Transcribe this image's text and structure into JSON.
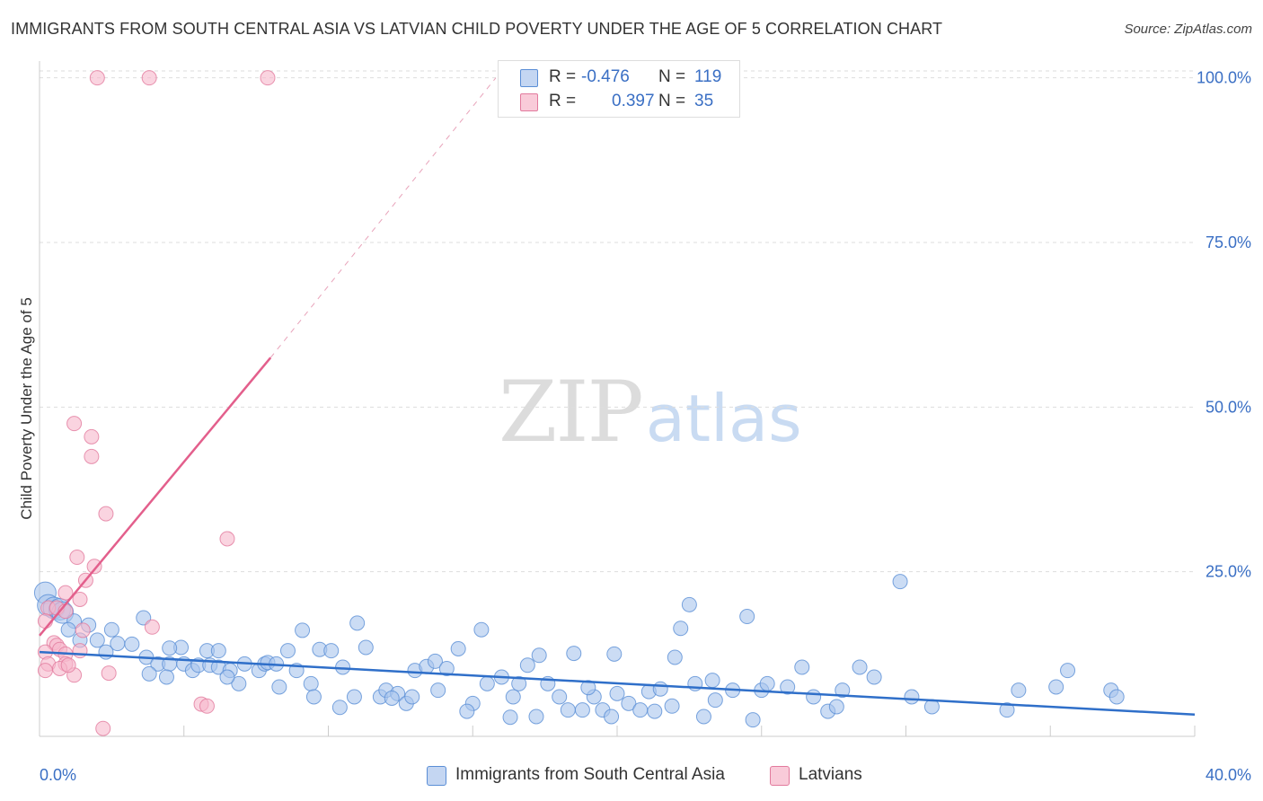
{
  "title": "IMMIGRANTS FROM SOUTH CENTRAL ASIA VS LATVIAN CHILD POVERTY UNDER THE AGE OF 5 CORRELATION CHART",
  "source": "Source: ZipAtlas.com",
  "watermark": {
    "zip": "ZIP",
    "atlas": "atlas"
  },
  "legend": {
    "series1": {
      "r_label": "R =",
      "r_value": "-0.476",
      "n_label": "N =",
      "n_value": "119",
      "name": "Immigrants from South Central Asia"
    },
    "series2": {
      "r_label": "R =",
      "r_value": "0.397",
      "n_label": "N =",
      "n_value": "35",
      "name": "Latvians"
    }
  },
  "colors": {
    "blue_fill": "#a9c4ec",
    "blue_stroke": "#5a8ed6",
    "blue_line": "#2f6fc9",
    "pink_fill": "#f6b8cb",
    "pink_stroke": "#e27a9d",
    "pink_line": "#e35f8c",
    "tick_text": "#3a6fc4",
    "grid": "#dddddd"
  },
  "chart_data": {
    "type": "scatter",
    "title": "IMMIGRANTS FROM SOUTH CENTRAL ASIA VS LATVIAN CHILD POVERTY UNDER THE AGE OF 5 CORRELATION CHART",
    "xlabel": "",
    "ylabel": "Child Poverty Under the Age of 5",
    "xlim": [
      0,
      40
    ],
    "ylim": [
      0,
      102
    ],
    "x_tick_labels": [
      {
        "value": 0,
        "label": "0.0%"
      },
      {
        "value": 40,
        "label": "40.0%"
      }
    ],
    "y_tick_labels": [
      {
        "value": 25,
        "label": "25.0%"
      },
      {
        "value": 50,
        "label": "50.0%"
      },
      {
        "value": 75,
        "label": "75.0%"
      },
      {
        "value": 100,
        "label": "100.0%"
      }
    ],
    "grid": true,
    "legend_position": "top-center",
    "series": [
      {
        "name": "Immigrants from South Central Asia",
        "color": "#a9c4ec",
        "trend": {
          "x0": 0,
          "y0": 12.8,
          "x1": 40,
          "y1": 3.3
        },
        "points": [
          [
            0.2,
            21.8
          ],
          [
            0.3,
            19.9
          ],
          [
            0.5,
            19.5
          ],
          [
            0.7,
            19.3
          ],
          [
            0.8,
            18.8
          ],
          [
            1.2,
            17.5
          ],
          [
            1.0,
            16.2
          ],
          [
            1.7,
            16.9
          ],
          [
            2.5,
            16.2
          ],
          [
            1.4,
            14.6
          ],
          [
            2.0,
            14.6
          ],
          [
            2.7,
            14.1
          ],
          [
            3.2,
            14.0
          ],
          [
            2.3,
            12.8
          ],
          [
            3.6,
            18.0
          ],
          [
            3.7,
            12.0
          ],
          [
            4.1,
            11.0
          ],
          [
            4.5,
            11.0
          ],
          [
            3.8,
            9.5
          ],
          [
            4.4,
            9.0
          ],
          [
            5.0,
            11.0
          ],
          [
            5.3,
            10.0
          ],
          [
            5.5,
            10.8
          ],
          [
            5.9,
            10.8
          ],
          [
            4.9,
            13.5
          ],
          [
            5.8,
            13.0
          ],
          [
            6.2,
            10.5
          ],
          [
            6.6,
            10.0
          ],
          [
            7.1,
            11.0
          ],
          [
            6.9,
            8.0
          ],
          [
            6.5,
            9.0
          ],
          [
            7.6,
            10.0
          ],
          [
            7.8,
            11.0
          ],
          [
            7.9,
            11.2
          ],
          [
            8.3,
            7.5
          ],
          [
            8.6,
            13.0
          ],
          [
            8.9,
            10.0
          ],
          [
            9.1,
            16.1
          ],
          [
            9.4,
            8.0
          ],
          [
            9.7,
            13.2
          ],
          [
            9.5,
            6.0
          ],
          [
            10.1,
            13.0
          ],
          [
            10.5,
            10.5
          ],
          [
            10.9,
            6.0
          ],
          [
            10.4,
            4.4
          ],
          [
            11.0,
            17.2
          ],
          [
            11.3,
            13.5
          ],
          [
            11.8,
            6.0
          ],
          [
            12.0,
            7.0
          ],
          [
            12.4,
            6.5
          ],
          [
            12.7,
            5.0
          ],
          [
            12.9,
            6.0
          ],
          [
            13.0,
            10.0
          ],
          [
            13.4,
            10.6
          ],
          [
            13.7,
            11.4
          ],
          [
            13.8,
            7.0
          ],
          [
            14.1,
            10.3
          ],
          [
            14.5,
            13.3
          ],
          [
            15.0,
            5.0
          ],
          [
            15.3,
            16.2
          ],
          [
            14.8,
            3.8
          ],
          [
            15.5,
            8.0
          ],
          [
            16.0,
            9.0
          ],
          [
            16.3,
            2.9
          ],
          [
            16.6,
            8.0
          ],
          [
            16.9,
            10.8
          ],
          [
            17.3,
            12.3
          ],
          [
            17.6,
            8.0
          ],
          [
            17.2,
            3.0
          ],
          [
            18.0,
            6.0
          ],
          [
            18.3,
            4.0
          ],
          [
            18.5,
            12.6
          ],
          [
            18.8,
            4.0
          ],
          [
            19.2,
            6.0
          ],
          [
            19.5,
            4.0
          ],
          [
            19.9,
            12.5
          ],
          [
            20.0,
            6.5
          ],
          [
            19.8,
            3.0
          ],
          [
            20.4,
            5.0
          ],
          [
            20.8,
            4.0
          ],
          [
            21.1,
            6.8
          ],
          [
            21.3,
            3.8
          ],
          [
            21.5,
            7.2
          ],
          [
            21.9,
            4.6
          ],
          [
            22.0,
            12.0
          ],
          [
            22.2,
            16.4
          ],
          [
            22.5,
            20.0
          ],
          [
            22.7,
            8.0
          ],
          [
            23.0,
            3.0
          ],
          [
            23.4,
            5.5
          ],
          [
            24.0,
            7.0
          ],
          [
            24.5,
            18.2
          ],
          [
            24.7,
            2.5
          ],
          [
            25.0,
            7.0
          ],
          [
            25.2,
            8.0
          ],
          [
            25.9,
            7.5
          ],
          [
            26.4,
            10.5
          ],
          [
            26.8,
            6.0
          ],
          [
            27.3,
            3.8
          ],
          [
            27.6,
            4.5
          ],
          [
            27.8,
            7.0
          ],
          [
            28.4,
            10.5
          ],
          [
            28.9,
            9.0
          ],
          [
            29.8,
            23.5
          ],
          [
            30.2,
            6.0
          ],
          [
            30.9,
            4.5
          ],
          [
            33.5,
            4.0
          ],
          [
            33.9,
            7.0
          ],
          [
            35.2,
            7.5
          ],
          [
            35.6,
            10.0
          ],
          [
            37.1,
            7.0
          ],
          [
            37.3,
            6.0
          ],
          [
            4.5,
            13.4
          ],
          [
            6.2,
            13.0
          ],
          [
            8.2,
            11.0
          ],
          [
            12.2,
            5.8
          ],
          [
            16.4,
            6.0
          ],
          [
            19.0,
            7.4
          ],
          [
            23.3,
            8.5
          ]
        ]
      },
      {
        "name": "Latvians",
        "color": "#f6b8cb",
        "trend": {
          "x0": 0,
          "y0": 15.3,
          "x1": 8.0,
          "y1": 57.5,
          "dashed_to": {
            "x": 15.8,
            "y": 100
          }
        },
        "points": [
          [
            2.0,
            100.0
          ],
          [
            3.8,
            100.0
          ],
          [
            7.9,
            100.0
          ],
          [
            1.2,
            47.5
          ],
          [
            1.8,
            45.5
          ],
          [
            1.8,
            42.5
          ],
          [
            2.3,
            33.8
          ],
          [
            6.5,
            30.0
          ],
          [
            1.3,
            27.2
          ],
          [
            1.9,
            25.8
          ],
          [
            1.6,
            23.7
          ],
          [
            0.9,
            21.8
          ],
          [
            1.4,
            20.8
          ],
          [
            0.3,
            19.5
          ],
          [
            0.6,
            19.5
          ],
          [
            0.9,
            19.0
          ],
          [
            0.2,
            17.5
          ],
          [
            1.5,
            16.1
          ],
          [
            3.9,
            16.6
          ],
          [
            0.5,
            14.2
          ],
          [
            0.6,
            13.8
          ],
          [
            0.7,
            13.2
          ],
          [
            1.4,
            13.0
          ],
          [
            0.2,
            12.8
          ],
          [
            0.9,
            12.5
          ],
          [
            0.3,
            11.0
          ],
          [
            0.9,
            11.0
          ],
          [
            0.7,
            10.3
          ],
          [
            0.2,
            10.0
          ],
          [
            1.2,
            9.3
          ],
          [
            2.4,
            9.6
          ],
          [
            1.0,
            10.8
          ],
          [
            5.6,
            4.9
          ],
          [
            5.8,
            4.6
          ],
          [
            2.2,
            1.2
          ]
        ]
      }
    ]
  }
}
